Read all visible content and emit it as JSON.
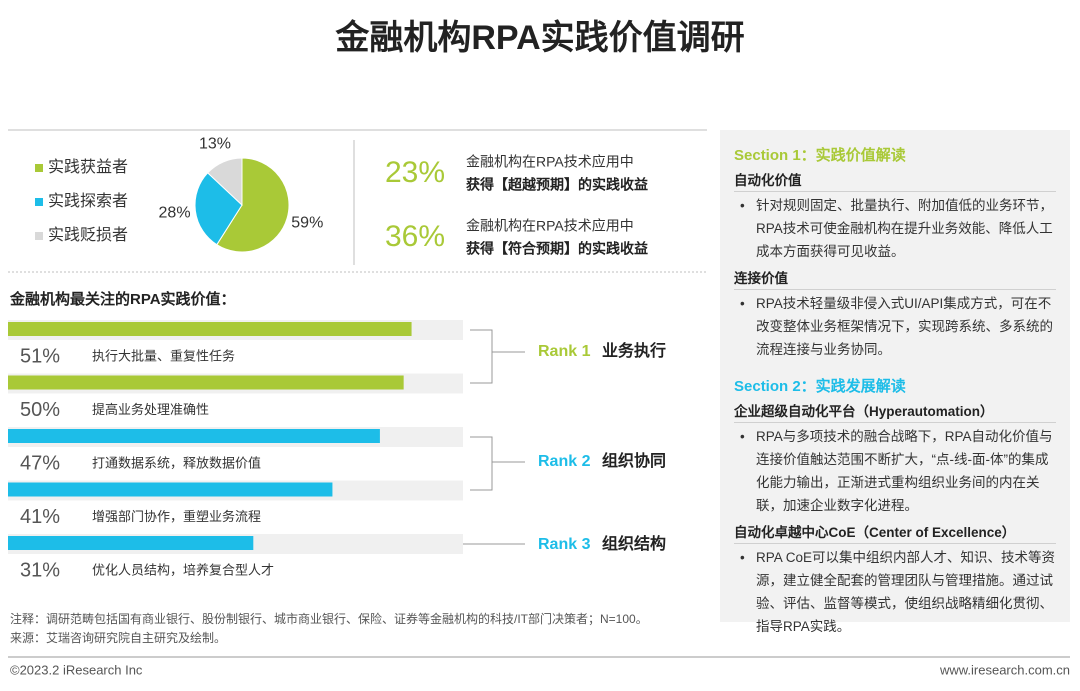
{
  "title": "金融机构RPA实践价值调研",
  "chart_data": [
    {
      "type": "pie",
      "categories": [
        "实践获益者",
        "实践探索者",
        "实践贬损者"
      ],
      "values": [
        59,
        28,
        13
      ],
      "value_labels": [
        "59%",
        "28%",
        "13%"
      ],
      "colors": [
        "#a9c937",
        "#1dbde8",
        "#d9d9d9"
      ]
    },
    {
      "type": "bar",
      "title": "金融机构最关注的RPA实践价值：",
      "categories": [
        "执行大批量、重复性任务",
        "提高业务处理准确性",
        "打通数据系统，释放数据价值",
        "增强部门协作，重塑业务流程",
        "优化人员结构，培养复合型人才"
      ],
      "values": [
        51,
        50,
        47,
        41,
        31
      ],
      "value_labels": [
        "51%",
        "50%",
        "47%",
        "41%",
        "31%"
      ],
      "colors": [
        "#a9c937",
        "#a9c937",
        "#1dbde8",
        "#1dbde8",
        "#1dbde8"
      ],
      "xlim": [
        0,
        57.5
      ]
    }
  ],
  "stats": [
    {
      "value": "23%",
      "line1": "金融机构在RPA技术应用中",
      "line2": "获得【超越预期】的实践收益"
    },
    {
      "value": "36%",
      "line1": "金融机构在RPA技术应用中",
      "line2": "获得【符合预期】的实践收益"
    }
  ],
  "ranks": [
    {
      "rank": "Rank 1",
      "label": "业务执行",
      "color": "#a9c937"
    },
    {
      "rank": "Rank 2",
      "label": "组织协同",
      "color": "#1dbde8"
    },
    {
      "rank": "Rank 3",
      "label": "组织结构",
      "color": "#1dbde8"
    }
  ],
  "panel": {
    "sections": [
      {
        "heading": "Section 1：实践价值解读",
        "color": "#a9c937",
        "items": [
          {
            "subheading": "自动化价值",
            "text": "针对规则固定、批量执行、附加值低的业务环节，RPA技术可使金融机构在提升业务效能、降低人工成本方面获得可见收益。"
          },
          {
            "subheading": "连接价值",
            "text": "RPA技术轻量级非侵入式UI/API集成方式，可在不改变整体业务框架情况下，实现跨系统、多系统的流程连接与业务协同。"
          }
        ]
      },
      {
        "heading": "Section 2：实践发展解读",
        "color": "#1dbde8",
        "items": [
          {
            "subheading": "企业超级自动化平台（Hyperautomation）",
            "text": "RPA与多项技术的融合战略下，RPA自动化价值与连接价值触达范围不断扩大，“点-线-面-体”的集成化能力输出，正渐进式重构组织业务间的内在关联，加速企业数字化进程。"
          },
          {
            "subheading": "自动化卓越中心CoE（Center of Excellence）",
            "text": "RPA CoE可以集中组织内部人才、知识、技术等资源，建立健全配套的管理团队与管理措施。通过试验、评估、监督等模式，使组织战略精细化贯彻、指导RPA实践。"
          }
        ]
      }
    ]
  },
  "notes": [
    "注释：调研范畴包括国有商业银行、股份制银行、城市商业银行、保险、证券等金融机构的科技/IT部门决策者；N=100。",
    "来源：艾瑞咨询研究院自主研究及绘制。"
  ],
  "footer": {
    "left": "©2023.2 iResearch Inc",
    "right": "www.iresearch.com.cn"
  }
}
